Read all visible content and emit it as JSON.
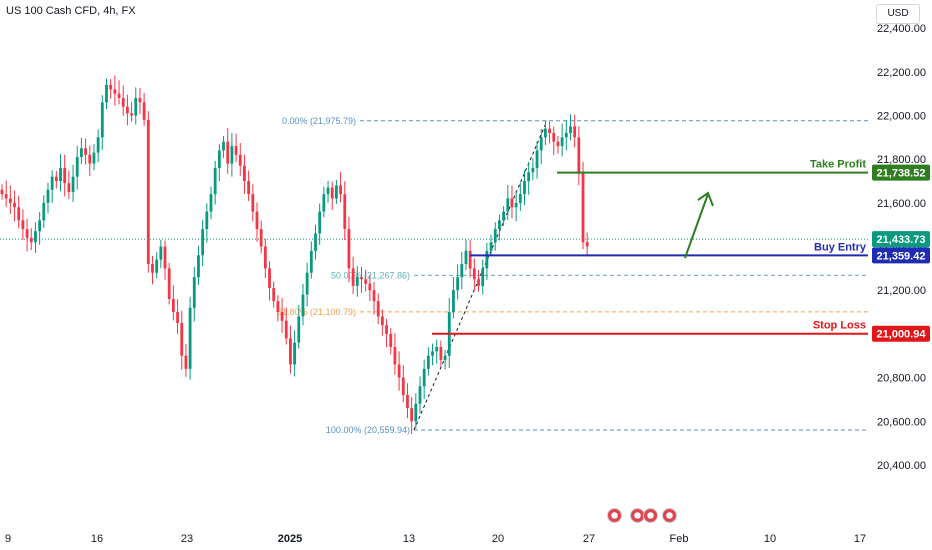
{
  "header": {
    "symbol": "US 100 Cash CFD, 4h, FX",
    "currency": "USD"
  },
  "chart_data": {
    "type": "candlestick",
    "y_axis": {
      "ticks": [
        20400,
        20600,
        20800,
        21000,
        21200,
        21400,
        21600,
        21800,
        22000,
        22200,
        22400
      ],
      "range": [
        20300,
        22440
      ]
    },
    "x_axis": {
      "ticks": [
        "9",
        "16",
        "23",
        "2025",
        "13",
        "20",
        "27",
        "Feb",
        "10",
        "17"
      ]
    },
    "closes": [
      21640,
      21620,
      21600,
      21580,
      21520,
      21480,
      21440,
      21420,
      21470,
      21520,
      21600,
      21660,
      21720,
      21700,
      21760,
      21690,
      21650,
      21720,
      21810,
      21850,
      21820,
      21780,
      21830,
      21900,
      22060,
      22140,
      22120,
      22100,
      22080,
      22040,
      22010,
      22000,
      22080,
      22060,
      21980,
      21320,
      21280,
      21340,
      21400,
      21300,
      21160,
      21100,
      21050,
      20900,
      20840,
      21120,
      21260,
      21360,
      21480,
      21560,
      21640,
      21760,
      21840,
      21880,
      21780,
      21860,
      21820,
      21770,
      21700,
      21640,
      21560,
      21480,
      21400,
      21300,
      21210,
      21150,
      21100,
      21060,
      20980,
      20860,
      20960,
      21080,
      21180,
      21280,
      21380,
      21460,
      21560,
      21640,
      21670,
      21620,
      21680,
      21640,
      21480,
      21300,
      21220,
      21260,
      21250,
      21230,
      21200,
      21150,
      21080,
      21040,
      21000,
      20940,
      20860,
      20800,
      20720,
      20660,
      20600,
      20680,
      20760,
      20840,
      20900,
      20920,
      20940,
      20880,
      20900,
      21100,
      21200,
      21260,
      21320,
      21380,
      21300,
      21250,
      21220,
      21300,
      21380,
      21420,
      21480,
      21520,
      21560,
      21620,
      21580,
      21600,
      21640,
      21700,
      21740,
      21760,
      21840,
      21900,
      21940,
      21920,
      21880,
      21860,
      21900,
      21920,
      21950,
      21900,
      21740,
      21420,
      21400
    ],
    "fibonacci": [
      {
        "label": "0.00% (21,975.79)",
        "price": 21975.79,
        "color": "#5b8fc6"
      },
      {
        "label": "50.00% (21,267.86)",
        "price": 21267.86,
        "color": "#5fb0b7"
      },
      {
        "label": "61.80% (21,100.79)",
        "price": 21100.79,
        "color": "#f2a154"
      },
      {
        "label": "100.00% (20,559.94)",
        "price": 20559.94,
        "color": "#5b8fc6"
      }
    ],
    "levels": [
      {
        "name": "Take Profit",
        "price": 21738.52,
        "price_label": "21,738.52",
        "color": "#2e7d1f"
      },
      {
        "name": "Buy Entry",
        "price": 21359.42,
        "price_label": "21,359.42",
        "color": "#1f2bb3"
      },
      {
        "name": "Stop Loss",
        "price": 21000.94,
        "price_label": "21,000.94",
        "color": "#e0161b"
      }
    ],
    "last_price": {
      "price": 21433.73,
      "label": "21,433.73",
      "color": "#089981"
    },
    "colors": {
      "up": "#089981",
      "down": "#f23645"
    }
  }
}
